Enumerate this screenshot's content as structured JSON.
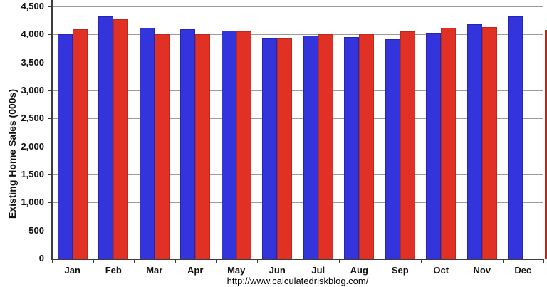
{
  "footer": {
    "url": "http://www.calculatedriskblog.com/"
  },
  "colors": {
    "series_blue": "#3434DC",
    "series_blue_border": "#2525B4",
    "series_red": "#E03124",
    "series_red_border": "#BC281B",
    "gridline": "#9B9B9B",
    "axis": "#3C3C3C",
    "text": "#111111",
    "background": "#FFFFFF"
  },
  "chart_data": {
    "type": "bar",
    "title": "",
    "xlabel": "",
    "ylabel": "Existing Home Sales (000s)",
    "categories": [
      "Jan",
      "Feb",
      "Mar",
      "Apr",
      "May",
      "Jun",
      "Jul",
      "Aug",
      "Sep",
      "Oct",
      "Nov",
      "Dec"
    ],
    "series": [
      {
        "name": "blue-series",
        "color": "#3434DC",
        "border": "#2525B4",
        "values": [
          4000,
          4320,
          4120,
          4090,
          4070,
          3930,
          3980,
          3950,
          3920,
          4020,
          4180,
          4320
        ]
      },
      {
        "name": "red-series",
        "color": "#E03124",
        "border": "#BC281B",
        "values": [
          4090,
          4270,
          4010,
          4000,
          4050,
          3930,
          4010,
          4010,
          4060,
          4120,
          4130,
          4080
        ],
        "clipped_at_edge": true
      }
    ],
    "ylim": [
      0,
      4500
    ],
    "ytick_step": 500,
    "ytick_labels": [
      "0",
      "500",
      "1,000",
      "1,500",
      "2,000",
      "2,500",
      "3,000",
      "3,500",
      "4,000",
      "4,500"
    ],
    "grid": true,
    "legend": "none",
    "source_note": "http://www.calculatedriskblog.com/",
    "notes": "Paired blue/red bars per month; the December red bar is cut off at the right edge of the image, only a thin sliver is visible."
  }
}
